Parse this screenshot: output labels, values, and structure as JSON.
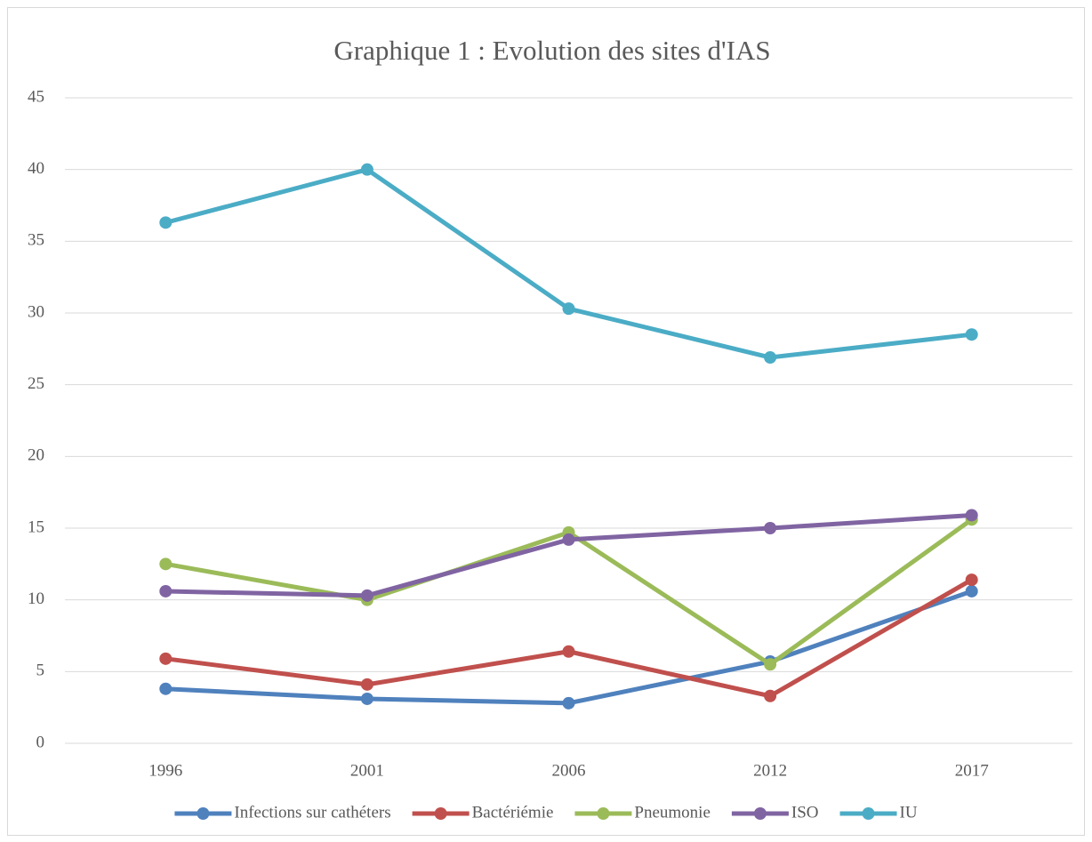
{
  "chart_data": {
    "type": "line",
    "title": "Graphique 1 : Evolution des sites d'IAS",
    "categories": [
      "1996",
      "2001",
      "2006",
      "2012",
      "2017"
    ],
    "series": [
      {
        "name": "Infections sur cathéters",
        "color": "#4f81bd",
        "values": [
          3.8,
          3.1,
          2.8,
          5.7,
          10.6
        ]
      },
      {
        "name": "Bactériémie",
        "color": "#c0504d",
        "values": [
          5.9,
          4.1,
          6.4,
          3.3,
          11.4
        ]
      },
      {
        "name": "Pneumonie",
        "color": "#9bbb59",
        "values": [
          12.5,
          10.0,
          14.7,
          5.5,
          15.6
        ]
      },
      {
        "name": "ISO",
        "color": "#8064a2",
        "values": [
          10.6,
          10.3,
          14.2,
          15.0,
          15.9
        ]
      },
      {
        "name": "IU",
        "color": "#4bacc6",
        "values": [
          36.3,
          40.0,
          30.3,
          26.9,
          28.5
        ]
      }
    ],
    "ylim": [
      0,
      45
    ],
    "yticks": [
      0,
      5,
      10,
      15,
      20,
      25,
      30,
      35,
      40,
      45
    ],
    "grid": true,
    "legend": "bottom"
  }
}
